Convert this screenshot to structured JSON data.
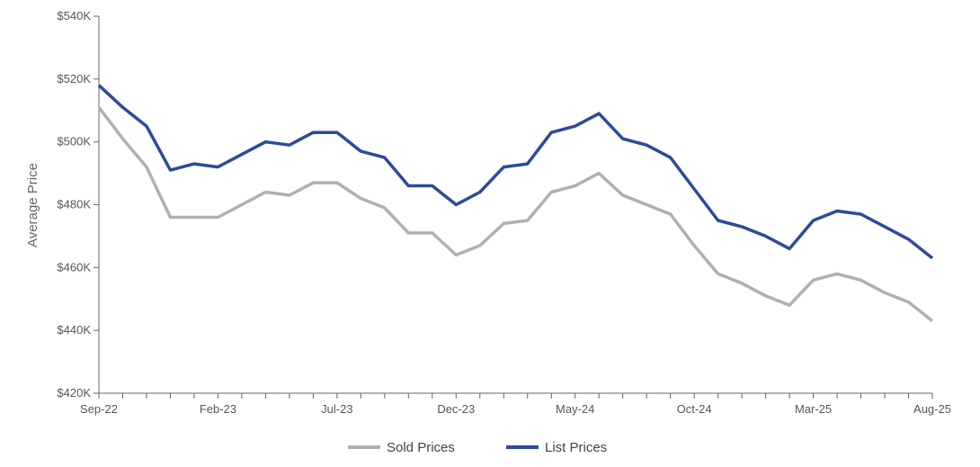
{
  "chart_data": {
    "type": "line",
    "title": "",
    "xlabel": "",
    "ylabel": "Average Price",
    "ylim": [
      420000,
      540000
    ],
    "yticks": [
      420000,
      440000,
      460000,
      480000,
      500000,
      520000,
      540000
    ],
    "ytick_labels": [
      "$420K",
      "$440K",
      "$460K",
      "$480K",
      "$500K",
      "$520K",
      "$540K"
    ],
    "x": [
      "Sep-22",
      "Oct-22",
      "Nov-22",
      "Dec-22",
      "Jan-23",
      "Feb-23",
      "Mar-23",
      "Apr-23",
      "May-23",
      "Jun-23",
      "Jul-23",
      "Aug-23",
      "Sep-23",
      "Oct-23",
      "Nov-23",
      "Dec-23",
      "Jan-24",
      "Feb-24",
      "Mar-24",
      "Apr-24",
      "May-24",
      "Jun-24",
      "Jul-24",
      "Aug-24",
      "Sep-24",
      "Oct-24",
      "Nov-24",
      "Dec-24",
      "Jan-25",
      "Feb-25",
      "Mar-25",
      "Apr-25",
      "May-25",
      "Jun-25",
      "Jul-25",
      "Aug-25"
    ],
    "xtick_labels": [
      "Sep-22",
      "Feb-23",
      "Jul-23",
      "Dec-23",
      "May-24",
      "Oct-24",
      "Mar-25",
      "Aug-25"
    ],
    "grid": false,
    "legend_position": "bottom-center",
    "series": [
      {
        "name": "Sold Prices",
        "color": "#b0b0b0",
        "values": [
          511000,
          501000,
          492000,
          476000,
          476000,
          476000,
          480000,
          484000,
          483000,
          487000,
          487000,
          482000,
          479000,
          471000,
          471000,
          464000,
          467000,
          474000,
          475000,
          484000,
          486000,
          490000,
          483000,
          480000,
          477000,
          467000,
          458000,
          455000,
          451000,
          448000,
          456000,
          458000,
          456000,
          452000,
          449000,
          443000
        ]
      },
      {
        "name": "List Prices",
        "color": "#2e4a99",
        "values": [
          518000,
          511000,
          505000,
          491000,
          493000,
          492000,
          496000,
          500000,
          499000,
          503000,
          503000,
          497000,
          495000,
          486000,
          486000,
          480000,
          484000,
          492000,
          493000,
          503000,
          505000,
          509000,
          501000,
          499000,
          495000,
          485000,
          475000,
          473000,
          470000,
          466000,
          475000,
          478000,
          477000,
          473000,
          469000,
          463000
        ]
      }
    ]
  }
}
